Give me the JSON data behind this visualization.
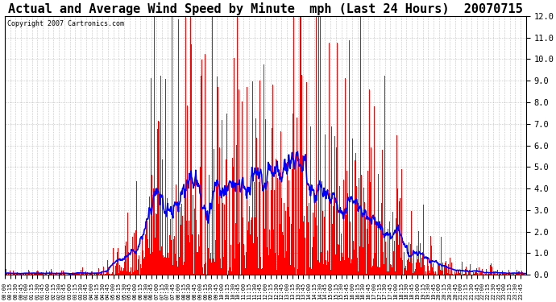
{
  "title": "Actual and Average Wind Speed by Minute  mph (Last 24 Hours)  20070715",
  "copyright": "Copyright 2007 Cartronics.com",
  "ylim": [
    0.0,
    12.0
  ],
  "yticks": [
    0.0,
    1.0,
    2.0,
    3.0,
    4.0,
    5.0,
    6.0,
    7.0,
    8.0,
    9.0,
    10.0,
    11.0,
    12.0
  ],
  "background_color": "#ffffff",
  "bar_color": "#ff0000",
  "line_color": "#0000ff",
  "title_fontsize": 11,
  "n_minutes": 1440
}
